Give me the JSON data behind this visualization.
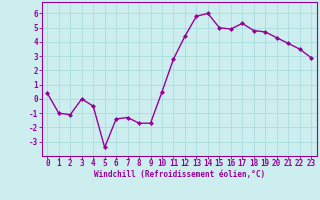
{
  "x": [
    0,
    1,
    2,
    3,
    4,
    5,
    6,
    7,
    8,
    9,
    10,
    11,
    12,
    13,
    14,
    15,
    16,
    17,
    18,
    19,
    20,
    21,
    22,
    23
  ],
  "y": [
    0.4,
    -1.0,
    -1.1,
    0.0,
    -0.5,
    -3.4,
    -1.4,
    -1.3,
    -1.7,
    -1.7,
    0.5,
    2.8,
    4.4,
    5.8,
    6.0,
    5.0,
    4.9,
    5.3,
    4.8,
    4.7,
    4.3,
    3.9,
    3.5,
    2.9
  ],
  "line_color": "#990099",
  "marker": "D",
  "marker_size": 2.0,
  "bg_color": "#cceeee",
  "grid_color": "#aadddd",
  "xlabel": "Windchill (Refroidissement éolien,°C)",
  "xlabel_color": "#990099",
  "tick_color": "#990099",
  "xlim": [
    -0.5,
    23.5
  ],
  "ylim": [
    -4,
    6.8
  ],
  "yticks": [
    -3,
    -2,
    -1,
    0,
    1,
    2,
    3,
    4,
    5,
    6
  ],
  "xticks": [
    0,
    1,
    2,
    3,
    4,
    5,
    6,
    7,
    8,
    9,
    10,
    11,
    12,
    13,
    14,
    15,
    16,
    17,
    18,
    19,
    20,
    21,
    22,
    23
  ],
  "line_width": 1.0,
  "tick_fontsize": 5.5,
  "xlabel_fontsize": 5.5
}
